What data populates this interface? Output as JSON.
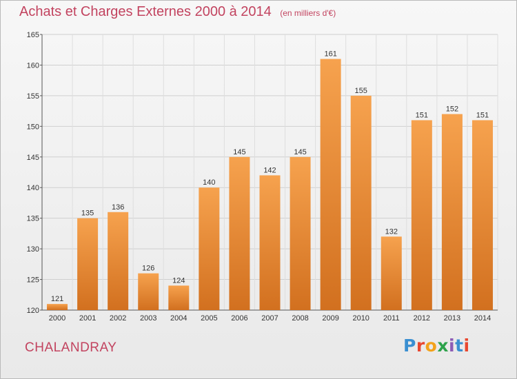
{
  "title": {
    "main": "Achats et Charges Externes 2000 à 2014",
    "unit": "(en milliers d'€)"
  },
  "commune": "CHALANDRAY",
  "logo": {
    "text": "Proxiti",
    "letters": [
      "P",
      "r",
      "o",
      "x",
      "i",
      "t",
      "i"
    ],
    "colors": [
      "#3a8fd1",
      "#e8472f",
      "#f3a21b",
      "#2da24b",
      "#8c5bb6",
      "#3a8fd1",
      "#e8472f"
    ]
  },
  "chart_data": {
    "type": "bar",
    "categories": [
      "2000",
      "2001",
      "2002",
      "2003",
      "2004",
      "2005",
      "2006",
      "2007",
      "2008",
      "2009",
      "2010",
      "2011",
      "2012",
      "2013",
      "2014"
    ],
    "values": [
      121,
      135,
      136,
      126,
      124,
      140,
      145,
      142,
      145,
      161,
      155,
      132,
      151,
      152,
      151
    ],
    "ylim": [
      120,
      165
    ],
    "yticks": [
      120,
      125,
      130,
      135,
      140,
      145,
      150,
      155,
      160,
      165
    ],
    "grid": true,
    "bar_color_top": "#f6a24e",
    "bar_color_bottom": "#d2701f"
  }
}
